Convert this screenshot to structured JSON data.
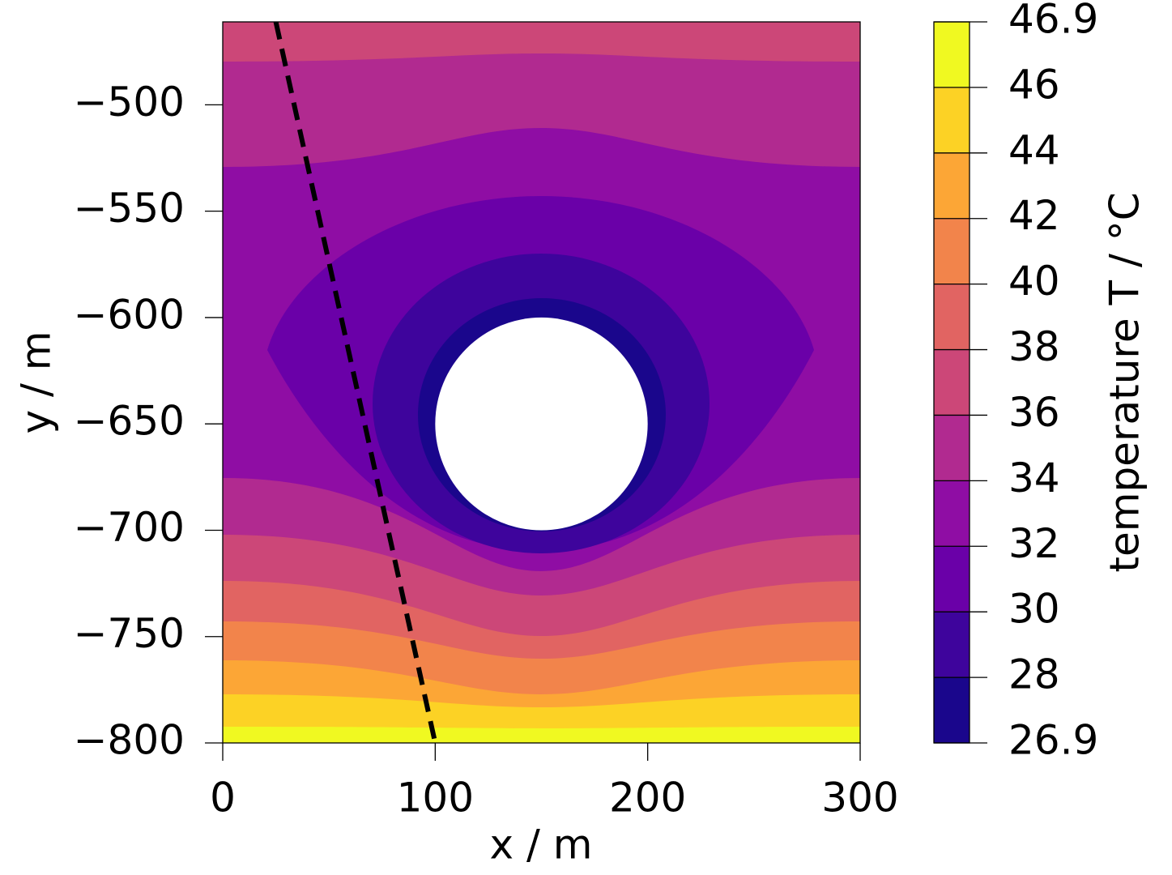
{
  "chart_data": {
    "type": "contour",
    "xlabel": "x / m",
    "ylabel": "y / m",
    "xlim": [
      0,
      300
    ],
    "ylim": [
      -800,
      -461
    ],
    "xticks": [
      0,
      100,
      200,
      300
    ],
    "yticks": [
      {
        "value": -500,
        "label": "−500"
      },
      {
        "value": -550,
        "label": "−550"
      },
      {
        "value": -600,
        "label": "−600"
      },
      {
        "value": -650,
        "label": "−650"
      },
      {
        "value": -700,
        "label": "−700"
      },
      {
        "value": -750,
        "label": "−750"
      },
      {
        "value": -800,
        "label": "−800"
      }
    ],
    "colorbar": {
      "label": "temperature T / °C",
      "levels": [
        26.9,
        28,
        30,
        32,
        34,
        36,
        38,
        40,
        42,
        44,
        46,
        46.9
      ],
      "colors": [
        "#1a068c",
        "#3e049c",
        "#6a00a8",
        "#8f0da4",
        "#b12a90",
        "#cc4778",
        "#e16462",
        "#f2844b",
        "#fca636",
        "#fcd225",
        "#f0f921"
      ]
    },
    "hole": {
      "x": 150,
      "y": -650,
      "r": 50
    },
    "overlay_line": {
      "x": [
        25,
        100
      ],
      "y": [
        -461,
        -800
      ],
      "color": "#000000",
      "dashed": true
    }
  }
}
